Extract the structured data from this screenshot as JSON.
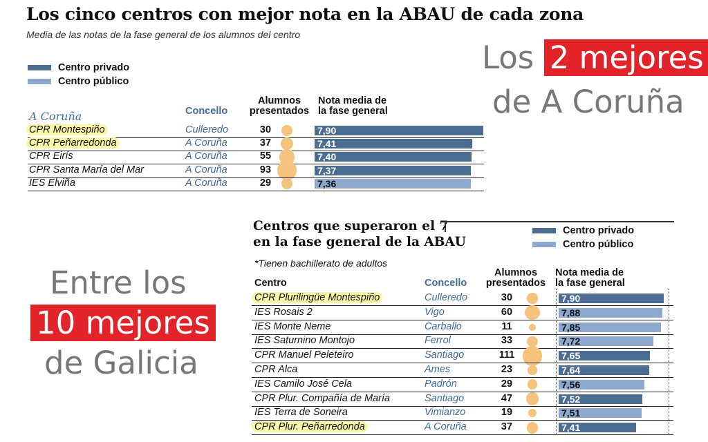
{
  "colors": {
    "privado": "#4c6d92",
    "publico": "#8ea9ce",
    "bubble": "#f6c37c",
    "highlight": "#fbf6a8",
    "red_box": "#e3232a",
    "concello_text": "#3e6a9c"
  },
  "top": {
    "title": "Los cinco centros con mejor nota en la ABAU de cada zona",
    "subtitle": "Media de las notas de la fase general de los alumnos del centro",
    "legend": [
      {
        "label": "Centro privado",
        "type": "privado"
      },
      {
        "label": "Centro público",
        "type": "publico"
      }
    ],
    "region": "A Coruña",
    "col_concello": "Concello",
    "col_alumnos": [
      "Alumnos",
      "presentados"
    ],
    "col_nota": [
      "Nota media de",
      "la fase general"
    ]
  },
  "bottom": {
    "title_line1": "Centros que superaron el 7",
    "title_line2": "en la fase general de la ABAU",
    "note": "*Tienen bachillerato de adultos",
    "legend": [
      {
        "label": "Centro privado",
        "type": "privado"
      },
      {
        "label": "Centro público",
        "type": "publico"
      }
    ],
    "col_centro": "Centro",
    "col_concello": "Concello",
    "col_alumnos": [
      "Alumnos",
      "presentados"
    ],
    "col_nota": [
      "Nota media de",
      "la fase general"
    ]
  },
  "overlay": {
    "coruna_pre": "Los ",
    "coruna_hl": "2 mejores",
    "coruna_line2": "de A Coruña",
    "galicia_line1": "Entre los",
    "galicia_hl": "10 mejores",
    "galicia_line3": "de Galicia"
  },
  "chart_data": [
    {
      "type": "bar",
      "title": "Los cinco centros con mejor nota en la ABAU de cada zona",
      "subtitle": "Media de las notas de la fase general de los alumnos del centro",
      "region": "A Coruña",
      "rows": [
        {
          "centro": "CPR Montespiño",
          "concello": "Culleredo",
          "alumnos": 30,
          "nota": 7.9,
          "nota_label": "7,90",
          "tipo": "privado",
          "highlight": true
        },
        {
          "centro": "CPR Peñarredonda",
          "concello": "A Coruña",
          "alumnos": 37,
          "nota": 7.41,
          "nota_label": "7,41",
          "tipo": "privado",
          "highlight": true
        },
        {
          "centro": "CPR Eirís",
          "concello": "A Coruña",
          "alumnos": 55,
          "nota": 7.4,
          "nota_label": "7,40",
          "tipo": "privado",
          "highlight": false
        },
        {
          "centro": "CPR Santa María del Mar",
          "concello": "A Coruña",
          "alumnos": 93,
          "nota": 7.37,
          "nota_label": "7,37",
          "tipo": "privado",
          "highlight": false
        },
        {
          "centro": "IES Elviña",
          "concello": "A Coruña",
          "alumnos": 29,
          "nota": 7.36,
          "nota_label": "7,36",
          "tipo": "publico",
          "highlight": false
        }
      ]
    },
    {
      "type": "bar",
      "title": "Centros que superaron el 7 en la fase general de la ABAU",
      "rows": [
        {
          "centro": "CPR Plurilingüe Montespiño",
          "concello": "Culleredo",
          "alumnos": 30,
          "nota": 7.9,
          "nota_label": "7,90",
          "tipo": "privado",
          "highlight": true
        },
        {
          "centro": "IES Rosais 2",
          "concello": "Vigo",
          "alumnos": 60,
          "nota": 7.88,
          "nota_label": "7,88",
          "tipo": "publico",
          "highlight": false
        },
        {
          "centro": "IES Monte Neme",
          "concello": "Carballo",
          "alumnos": 11,
          "nota": 7.85,
          "nota_label": "7,85",
          "tipo": "publico",
          "highlight": false
        },
        {
          "centro": "IES Saturnino Montojo",
          "concello": "Ferrol",
          "alumnos": 33,
          "nota": 7.72,
          "nota_label": "7,72",
          "tipo": "publico",
          "highlight": false
        },
        {
          "centro": "CPR Manuel Peleteiro",
          "concello": "Santiago",
          "alumnos": 111,
          "nota": 7.65,
          "nota_label": "7,65",
          "tipo": "privado",
          "highlight": false
        },
        {
          "centro": "CPR Alca",
          "concello": "Ames",
          "alumnos": 23,
          "nota": 7.64,
          "nota_label": "7,64",
          "tipo": "privado",
          "highlight": false
        },
        {
          "centro": "IES Camilo José Cela",
          "concello": "Padrón",
          "alumnos": 29,
          "nota": 7.56,
          "nota_label": "7,56",
          "tipo": "publico",
          "highlight": false
        },
        {
          "centro": "CPR Plur. Compañía de María",
          "concello": "Santiago",
          "alumnos": 47,
          "nota": 7.52,
          "nota_label": "7,52",
          "tipo": "privado",
          "highlight": false
        },
        {
          "centro": "IES Terra de Soneira",
          "concello": "Vimianzo",
          "alumnos": 19,
          "nota": 7.51,
          "nota_label": "7,51",
          "tipo": "publico",
          "highlight": false
        },
        {
          "centro": "CPR Plur. Peñarredonda",
          "concello": "A Coruña",
          "alumnos": 37,
          "nota": 7.41,
          "nota_label": "7,41",
          "tipo": "privado",
          "highlight": true
        }
      ]
    }
  ]
}
